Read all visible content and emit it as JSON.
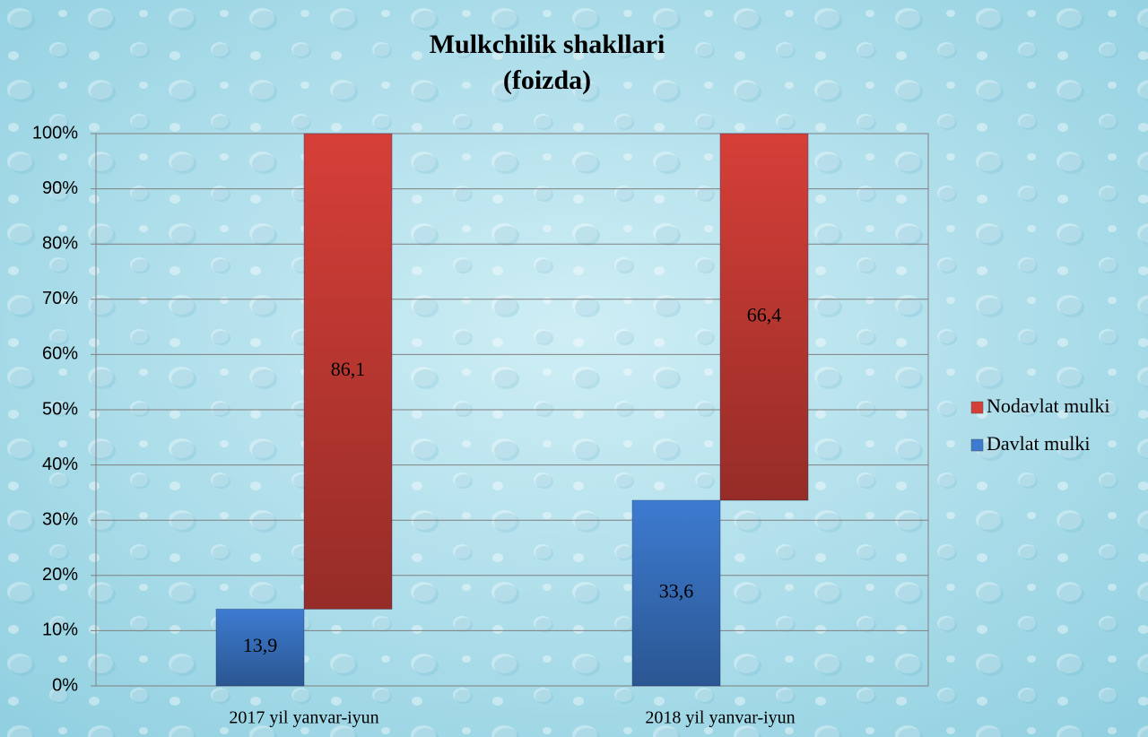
{
  "chart_data": {
    "type": "bar",
    "stacked": true,
    "title": "Mulkchilik shakllari",
    "subtitle": "(foizda)",
    "categories": [
      "2017 yil yanvar-iyun",
      "2018 yil yanvar-iyun"
    ],
    "series": [
      {
        "name": "Davlat mulki",
        "color": "#3d7bd0",
        "values": [
          13.9,
          33.6
        ],
        "value_labels": [
          "13,9",
          "33,6"
        ]
      },
      {
        "name": "Nodavlat mulki",
        "color": "#d63f38",
        "values": [
          86.1,
          66.4
        ],
        "value_labels": [
          "86,1",
          "66,4"
        ]
      }
    ],
    "ylim": [
      0,
      100
    ],
    "yticks": [
      {
        "value": 0,
        "label": "0%"
      },
      {
        "value": 10,
        "label": "10%"
      },
      {
        "value": 20,
        "label": "20%"
      },
      {
        "value": 30,
        "label": "30%"
      },
      {
        "value": 40,
        "label": "40%"
      },
      {
        "value": 50,
        "label": "50%"
      },
      {
        "value": 60,
        "label": "60%"
      },
      {
        "value": 70,
        "label": "70%"
      },
      {
        "value": 80,
        "label": "80%"
      },
      {
        "value": 90,
        "label": "90%"
      },
      {
        "value": 100,
        "label": "100%"
      }
    ],
    "grid": true,
    "legend": "right"
  }
}
